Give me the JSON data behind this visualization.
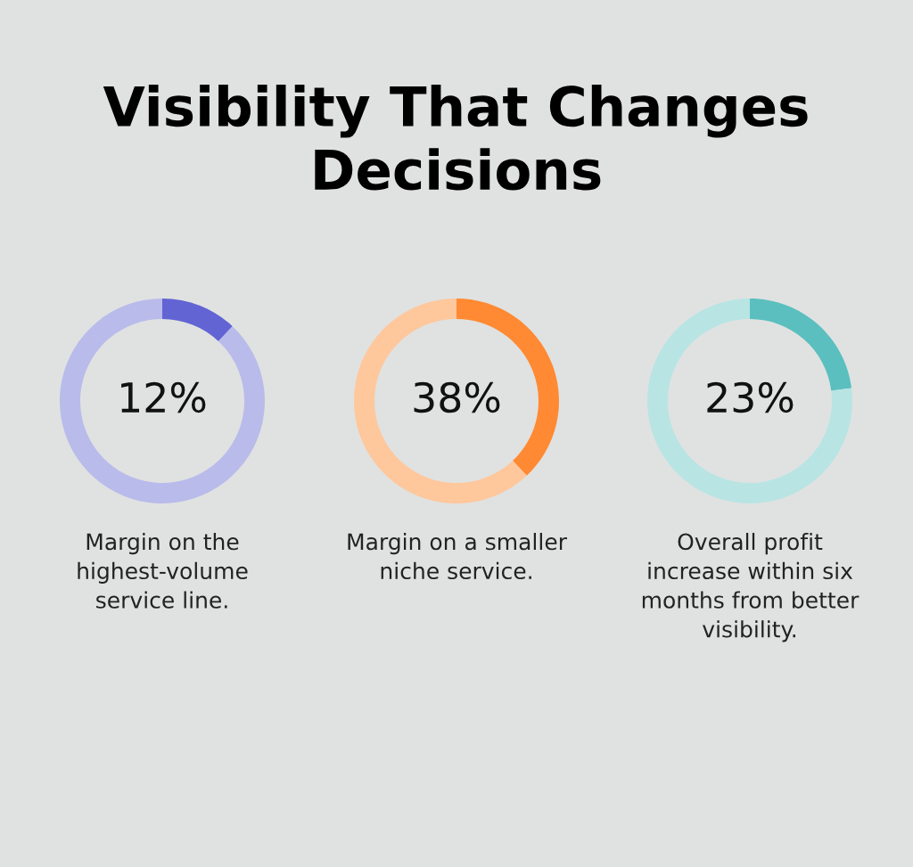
{
  "chart_data": [
    {
      "type": "donut",
      "title": "Visibility That Changes\nDecisions",
      "categories": [
        null,
        null
      ],
      "values": [
        12,
        88
      ],
      "colors": [
        "#6264d4",
        "#b9bbeb"
      ],
      "value_labels": [
        "12%",
        null
      ],
      "annotations": [
        "Margin on the\nhighest-volume\nservice line."
      ]
    },
    {
      "type": "donut",
      "categories": [
        null,
        null
      ],
      "values": [
        38,
        62
      ],
      "colors": [
        "#ff8a33",
        "#ffc79c"
      ],
      "value_labels": [
        "38%",
        null
      ],
      "annotations": [
        "Margin on a smaller\nniche service."
      ]
    },
    {
      "type": "donut",
      "categories": [
        null,
        null
      ],
      "values": [
        23,
        77
      ],
      "colors": [
        "#5bbfbf",
        "#b9e4e4"
      ],
      "value_labels": [
        "23%",
        null
      ],
      "annotations": [
        "Overall profit\nincrease within six\nmonths from better\nvisibility."
      ]
    }
  ]
}
